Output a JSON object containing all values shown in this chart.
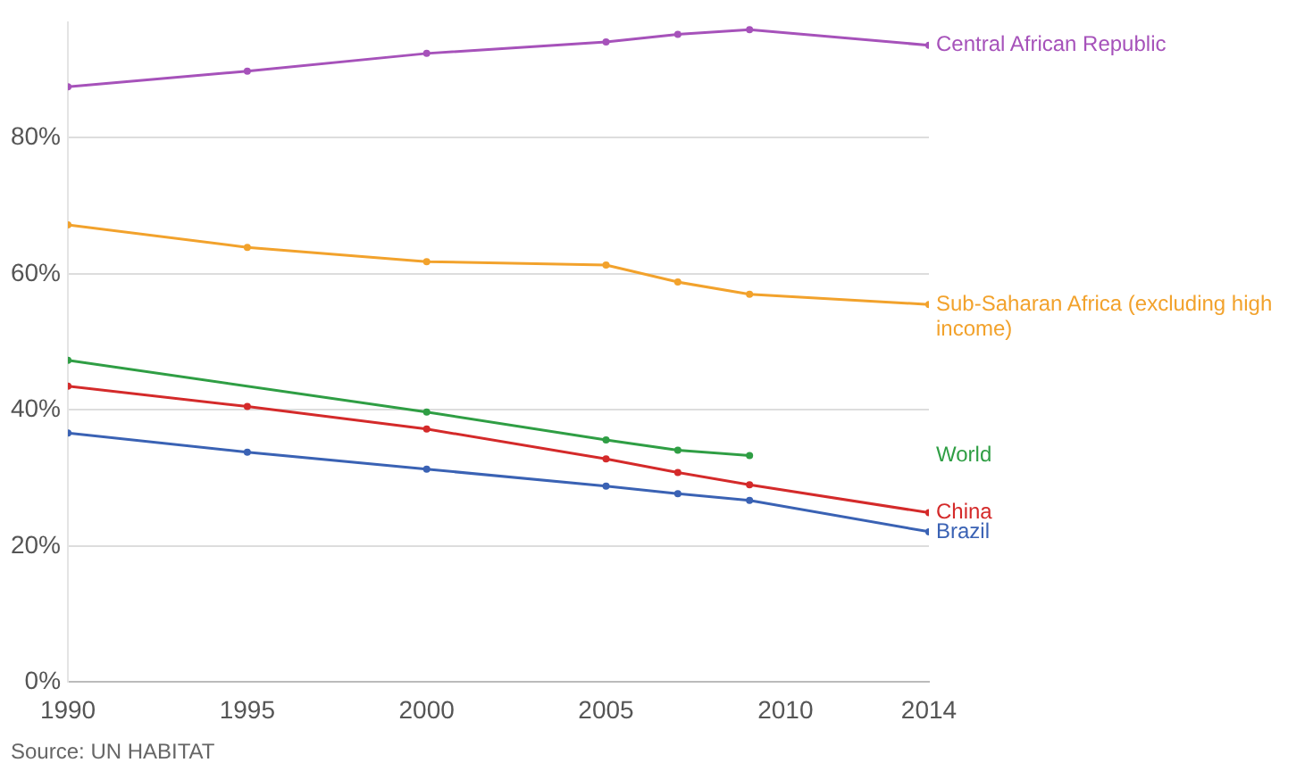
{
  "chart_data": {
    "type": "line",
    "series": [
      {
        "name": "Central African Republic",
        "color": "#a652ba",
        "x": [
          1990,
          1995,
          2000,
          2005,
          2007,
          2009,
          2014
        ],
        "values": [
          87.5,
          89.8,
          92.4,
          94.1,
          95.2,
          95.9,
          93.6
        ]
      },
      {
        "name": "Sub-Saharan Africa (excluding high income)",
        "color": "#f2a22c",
        "x": [
          1990,
          1995,
          2000,
          2005,
          2007,
          2009,
          2014
        ],
        "values": [
          67.2,
          63.9,
          61.8,
          61.3,
          58.8,
          57.0,
          55.5
        ]
      },
      {
        "name": "World",
        "color": "#2f9e44",
        "x": [
          1990,
          2000,
          2005,
          2007,
          2009
        ],
        "values": [
          47.3,
          39.7,
          35.6,
          34.1,
          33.3
        ]
      },
      {
        "name": "China",
        "color": "#d42a2a",
        "x": [
          1990,
          1995,
          2000,
          2005,
          2007,
          2009,
          2014
        ],
        "values": [
          43.5,
          40.5,
          37.2,
          32.8,
          30.8,
          29.0,
          24.9
        ]
      },
      {
        "name": "Brazil",
        "color": "#3a62b4",
        "x": [
          1990,
          1995,
          2000,
          2005,
          2007,
          2009,
          2014
        ],
        "values": [
          36.6,
          33.8,
          31.3,
          28.8,
          27.7,
          26.7,
          22.1
        ]
      }
    ],
    "xlim": [
      1990,
      2014
    ],
    "xticks": [
      1990,
      1995,
      2000,
      2005,
      2010,
      2014
    ],
    "ylim": [
      0,
      97
    ],
    "yticks": [
      {
        "value": 0,
        "label": "0%"
      },
      {
        "value": 20,
        "label": "20%"
      },
      {
        "value": 40,
        "label": "40%"
      },
      {
        "value": 60,
        "label": "60%"
      },
      {
        "value": 80,
        "label": "80%"
      }
    ],
    "grid": "y",
    "marker": "circle",
    "line_style": "solid",
    "legend": "right",
    "annotations": [
      "Source: UN HABITAT"
    ]
  }
}
